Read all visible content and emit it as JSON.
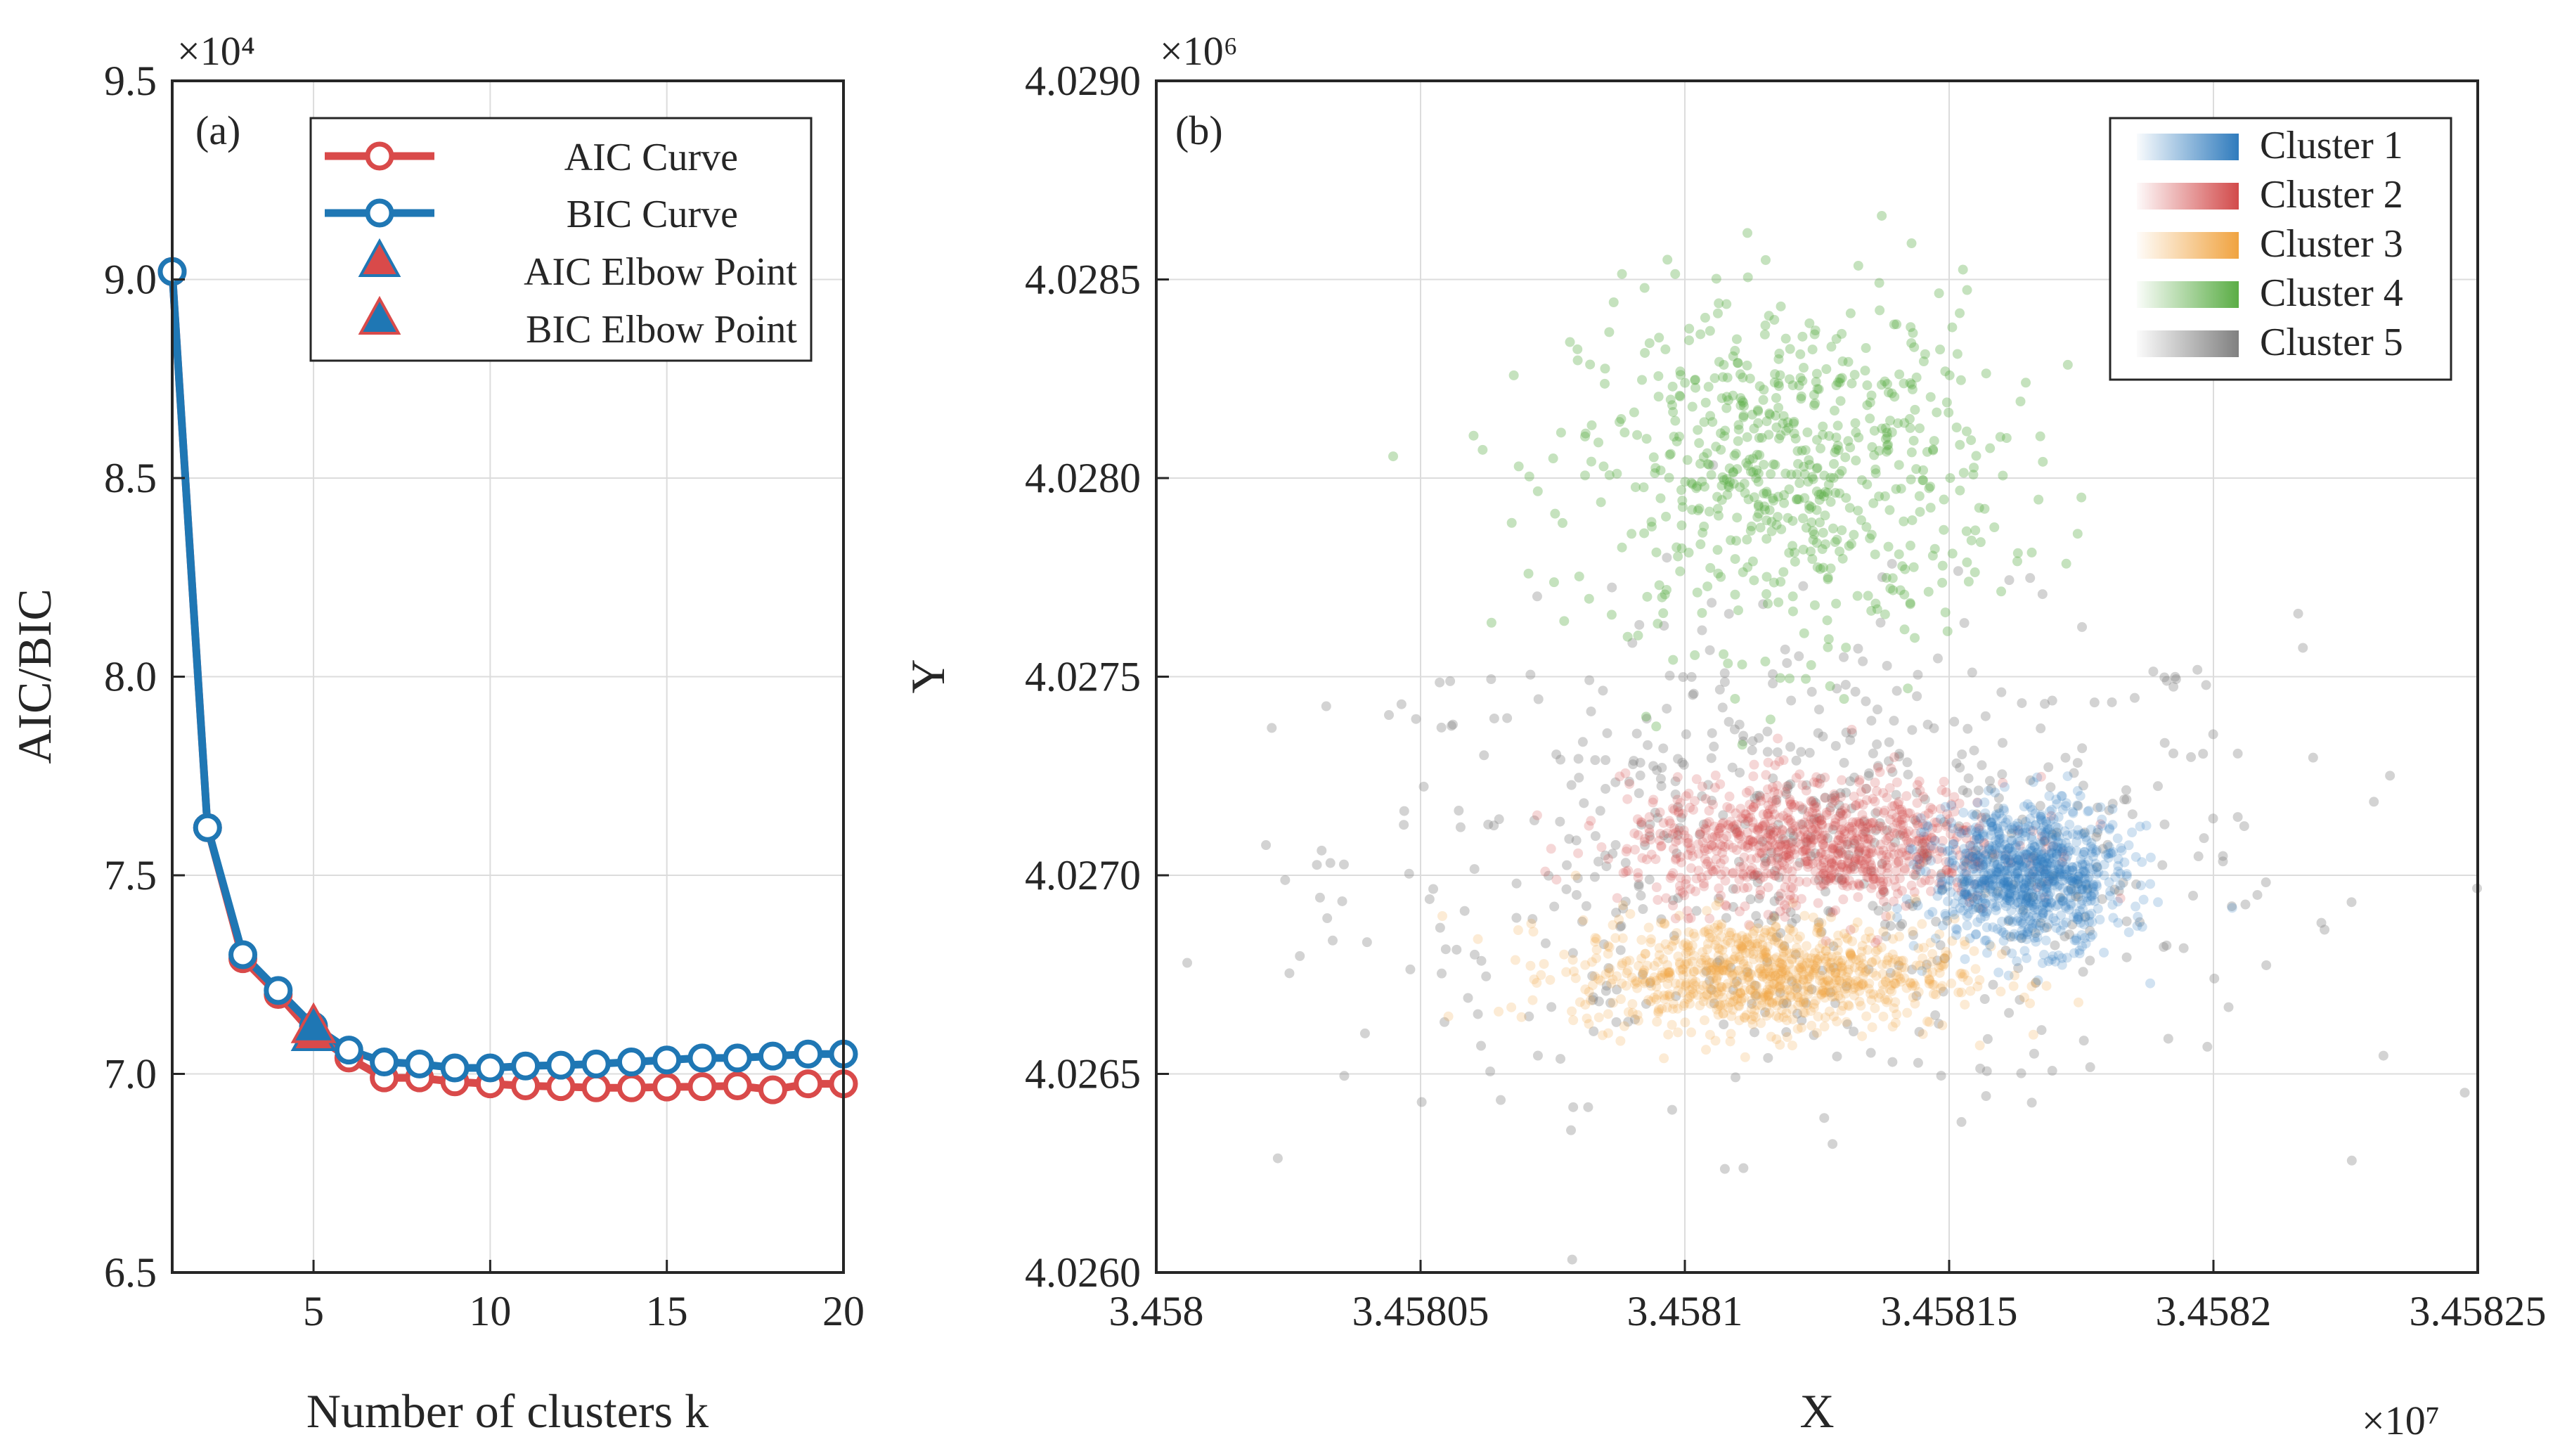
{
  "chart_data": [
    {
      "type": "line",
      "panel_label": "(a)",
      "title": "",
      "xlabel": "Number of clusters k",
      "ylabel": "AIC/BIC",
      "y_exponent": "×10⁴",
      "xlim": [
        1,
        20
      ],
      "ylim": [
        6.5,
        9.5
      ],
      "xticks": [
        "5",
        "10",
        "15",
        "20"
      ],
      "yticks": [
        "6.5",
        "7.0",
        "7.5",
        "8.0",
        "8.5",
        "9.0",
        "9.5"
      ],
      "grid": true,
      "legend_position": "top-right",
      "x": [
        1,
        2,
        3,
        4,
        5,
        6,
        7,
        8,
        9,
        10,
        11,
        12,
        13,
        14,
        15,
        16,
        17,
        18,
        19,
        20
      ],
      "series": [
        {
          "name": "AIC Curve",
          "color": "#d94a4a",
          "marker": "circle",
          "values": [
            9.02,
            7.62,
            7.29,
            7.2,
            7.1,
            7.04,
            6.99,
            6.99,
            6.98,
            6.975,
            6.97,
            6.968,
            6.965,
            6.965,
            6.967,
            6.968,
            6.97,
            6.96,
            6.975,
            6.975
          ]
        },
        {
          "name": "BIC Curve",
          "color": "#1f77b4",
          "marker": "circle",
          "values": [
            9.02,
            7.62,
            7.3,
            7.21,
            7.12,
            7.06,
            7.03,
            7.025,
            7.015,
            7.015,
            7.02,
            7.022,
            7.025,
            7.03,
            7.035,
            7.04,
            7.04,
            7.045,
            7.05,
            7.05
          ]
        },
        {
          "name": "AIC Elbow Point",
          "color": "#d94a4a",
          "edge": "#1f77b4",
          "marker": "triangle",
          "x": 5,
          "y": 7.1
        },
        {
          "name": "BIC Elbow Point",
          "color": "#1f77b4",
          "edge": "#d94a4a",
          "marker": "triangle",
          "x": 5,
          "y": 7.12
        }
      ]
    },
    {
      "type": "scatter",
      "panel_label": "(b)",
      "title": "",
      "xlabel": "X",
      "ylabel": "Y",
      "x_exponent": "×10⁷",
      "y_exponent": "×10⁶",
      "xlim": [
        3.458,
        3.45825
      ],
      "ylim": [
        4.026,
        4.029
      ],
      "xticks": [
        "3.458",
        "3.45805",
        "3.4581",
        "3.45815",
        "3.4582",
        "3.45825"
      ],
      "yticks": [
        "4.0260",
        "4.0265",
        "4.0270",
        "4.0275",
        "4.0280",
        "4.0285",
        "4.0290"
      ],
      "grid": true,
      "legend_position": "top-right",
      "clusters": [
        {
          "name": "Cluster 1",
          "color": "#2f7bbd",
          "center": [
            3.458165,
            4.027
          ],
          "spread": [
            9e-06,
            9e-05
          ],
          "density": "dense"
        },
        {
          "name": "Cluster 2",
          "color": "#d24a4a",
          "center": [
            3.458125,
            4.02708
          ],
          "spread": [
            1.8e-05,
            8e-05
          ],
          "density": "dense"
        },
        {
          "name": "Cluster 3",
          "color": "#f0a340",
          "center": [
            3.458115,
            4.02675
          ],
          "spread": [
            1.8e-05,
            7e-05
          ],
          "density": "dense"
        },
        {
          "name": "Cluster 4",
          "color": "#5aad45",
          "center": [
            3.45812,
            4.02802
          ],
          "spread": [
            2e-05,
            0.00022
          ],
          "density": "sparse"
        },
        {
          "name": "Cluster 5",
          "color": "#808080",
          "center": [
            3.458125,
            4.02705
          ],
          "spread": [
            4.5e-05,
            0.0003
          ],
          "density": "sparse"
        }
      ]
    }
  ]
}
